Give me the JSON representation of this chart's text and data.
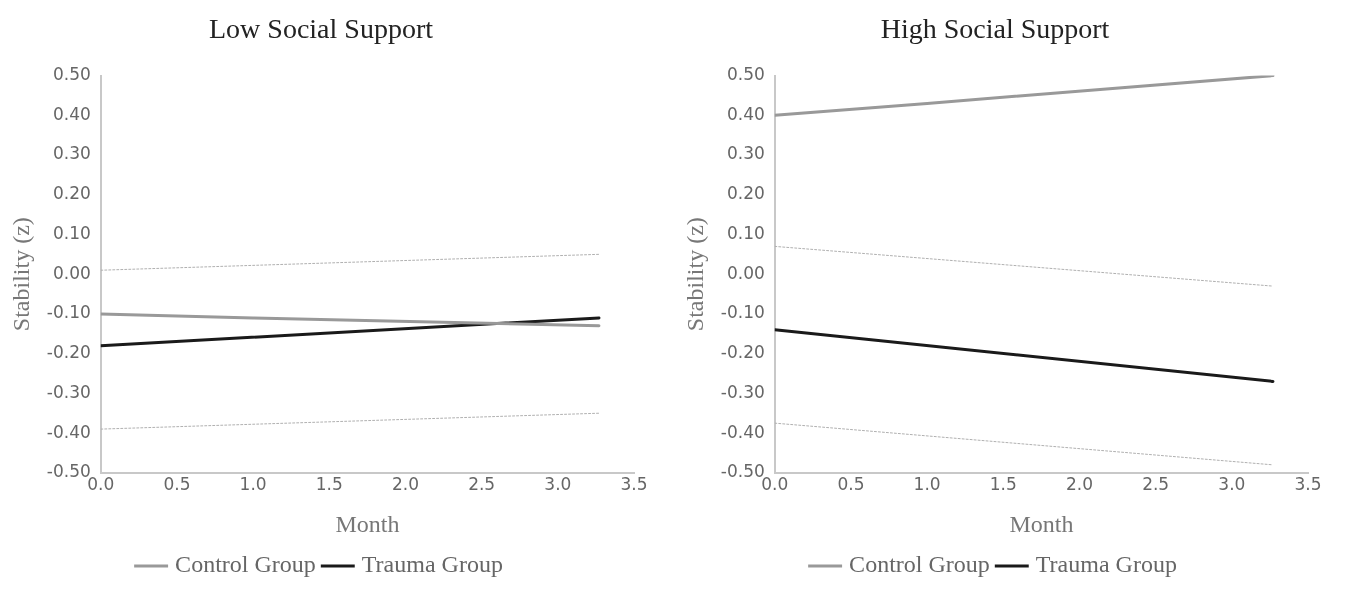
{
  "chart_data": [
    {
      "type": "line",
      "title": "Low Social Support",
      "xlabel": "Month",
      "ylabel": "Stability (z)",
      "xlim": [
        0,
        3.5
      ],
      "xticks": [
        {
          "value": 0,
          "label": "0.0"
        },
        0.5,
        {
          "value": 1,
          "label": "1.0"
        },
        1.5,
        {
          "value": 2,
          "label": "2.0"
        },
        2.5,
        {
          "value": 3,
          "label": "3.0"
        },
        3.5
      ],
      "ylim": [
        -0.5,
        0.5
      ],
      "yticks": [
        {
          "value": -0.5,
          "label": "-0.50"
        },
        {
          "value": -0.4,
          "label": "-0.40"
        },
        {
          "value": -0.3,
          "label": "-0.30"
        },
        {
          "value": -0.2,
          "label": "-0.20"
        },
        {
          "value": -0.1,
          "label": "-0.10"
        },
        {
          "value": 0,
          "label": "0.00"
        },
        {
          "value": 0.1,
          "label": "0.10"
        },
        {
          "value": 0.2,
          "label": "0.20"
        },
        {
          "value": 0.3,
          "label": "0.30"
        },
        {
          "value": 0.4,
          "label": "0.40"
        },
        {
          "value": 0.5,
          "label": "0.50"
        }
      ],
      "grid": false,
      "legend": "bottom",
      "marker": "none",
      "series": [
        {
          "name": "Control Group",
          "color": "#999999",
          "x": [
            0,
            1,
            3.27
          ],
          "values": [
            -0.1,
            -0.11,
            -0.13
          ]
        },
        {
          "name": "Trauma Group",
          "color": "#1a1a1a",
          "x": [
            0,
            3.27
          ],
          "values": [
            -0.18,
            -0.11
          ]
        },
        {
          "color": "#b0b0b0",
          "line_style": "dotted",
          "x": [
            0,
            3.27
          ],
          "values": [
            0.01,
            0.05
          ]
        },
        {
          "color": "#b0b0b0",
          "line_style": "dotted",
          "x": [
            0,
            3.27
          ],
          "values": [
            -0.39,
            -0.35
          ]
        }
      ]
    },
    {
      "type": "line",
      "title": "High Social Support",
      "xlabel": "Month",
      "ylabel": "Stability (z)",
      "xlim": [
        0,
        3.5
      ],
      "xticks": [
        {
          "value": 0,
          "label": "0.0"
        },
        0.5,
        {
          "value": 1,
          "label": "1.0"
        },
        1.5,
        {
          "value": 2,
          "label": "2.0"
        },
        2.5,
        {
          "value": 3,
          "label": "3.0"
        },
        3.5
      ],
      "ylim": [
        -0.5,
        0.5
      ],
      "yticks": [
        {
          "value": -0.5,
          "label": "-0.50"
        },
        {
          "value": -0.4,
          "label": "-0.40"
        },
        {
          "value": -0.3,
          "label": "-0.30"
        },
        {
          "value": -0.2,
          "label": "-0.20"
        },
        {
          "value": -0.1,
          "label": "-0.10"
        },
        {
          "value": 0,
          "label": "0.00"
        },
        {
          "value": 0.1,
          "label": "0.10"
        },
        {
          "value": 0.2,
          "label": "0.20"
        },
        {
          "value": 0.3,
          "label": "0.30"
        },
        {
          "value": 0.4,
          "label": "0.40"
        },
        {
          "value": 0.5,
          "label": "0.50"
        }
      ],
      "grid": false,
      "legend": "bottom",
      "marker": "none",
      "series": [
        {
          "name": "Control Group",
          "color": "#999999",
          "x": [
            0,
            1,
            3.27
          ],
          "values": [
            0.4,
            0.43,
            0.5
          ]
        },
        {
          "name": "Trauma Group",
          "color": "#1a1a1a",
          "x": [
            0,
            3.27
          ],
          "values": [
            -0.14,
            -0.27
          ]
        },
        {
          "color": "#b0b0b0",
          "line_style": "dotted",
          "x": [
            0,
            3.27
          ],
          "values": [
            0.07,
            -0.03
          ]
        },
        {
          "color": "#b0b0b0",
          "line_style": "dotted",
          "x": [
            0,
            3.27
          ],
          "values": [
            -0.375,
            -0.48
          ]
        }
      ]
    }
  ]
}
